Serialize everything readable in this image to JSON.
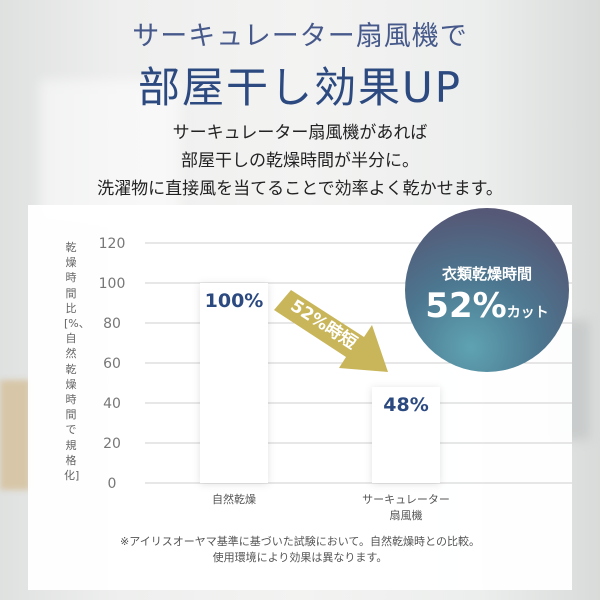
{
  "header": {
    "subtitle": "サーキュレーター扇風機で",
    "title": "部屋干し効果UP",
    "lead": [
      "サーキュレーター扇風機があれば",
      "部屋干しの乾燥時間が半分に。",
      "洗濯物に直接風を当てることで効率よく乾かせます。"
    ]
  },
  "badge": {
    "line1": "衣類乾燥時間",
    "value": "52%",
    "suffix": "カット"
  },
  "arrow_label": "52%時短",
  "footnote": [
    "※アイリスオーヤマ基準に基づいた試験において。自然乾燥時との比較。",
    "使用環境により効果は異なります。"
  ],
  "colors": {
    "title": "#2c4a80",
    "bar_label": "#2c4a80",
    "arrow": "#c9b65a",
    "grid": "#cfcfcf"
  },
  "chart_data": {
    "type": "bar",
    "ylabel": "乾燥時間比[%、自然乾燥時間で規格化]",
    "ylim": [
      0,
      120
    ],
    "yticks": [
      "0",
      "20",
      "40",
      "60",
      "80",
      "100",
      "120"
    ],
    "grid": true,
    "categories": [
      "自然乾燥",
      "サーキュレーター\n扇風機"
    ],
    "values": [
      100,
      48
    ],
    "data_labels": [
      "100%",
      "48%"
    ]
  }
}
